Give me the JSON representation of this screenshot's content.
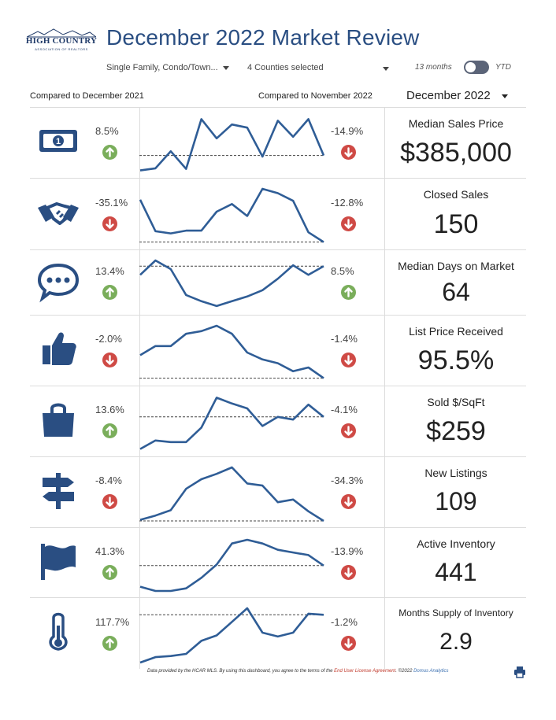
{
  "logo": {
    "name": "HIGH COUNTRY",
    "sub": "ASSOCIATION OF REALTORS"
  },
  "title": "December 2022 Market Review",
  "filters": {
    "property_type": "Single Family, Condo/Town...",
    "counties": "4 Counties selected",
    "toggle_left": "13 months",
    "toggle_right": "YTD"
  },
  "compare_left": "Compared to December 2021",
  "compare_right": "Compared to November 2022",
  "month_select": "December 2022",
  "colors": {
    "navy": "#2a4e82",
    "up": "#7aae5b",
    "down": "#cf4a45",
    "line": "#2f5d96"
  },
  "metrics": [
    {
      "label": "Median Sales Price",
      "value": "$385,000",
      "yoy": "8.5%",
      "yoy_dir": "up",
      "mom": "-14.9%",
      "mom_dir": "down",
      "icon": "money-icon",
      "spark": [
        0.02,
        0.06,
        0.38,
        0.05,
        0.98,
        0.62,
        0.88,
        0.82,
        0.28,
        0.95,
        0.65,
        0.98,
        0.3
      ],
      "spark_baseline": 0.3
    },
    {
      "label": "Closed Sales",
      "value": "150",
      "yoy": "-35.1%",
      "yoy_dir": "down",
      "mom": "-12.8%",
      "mom_dir": "down",
      "icon": "handshake-icon",
      "spark": [
        0.8,
        0.22,
        0.18,
        0.23,
        0.23,
        0.58,
        0.72,
        0.5,
        1.0,
        0.92,
        0.78,
        0.2,
        0.02
      ],
      "spark_baseline": 0.02
    },
    {
      "label": "Median Days on Market",
      "value": "64",
      "yoy": "13.4%",
      "yoy_dir": "up",
      "mom": "8.5%",
      "mom_dir": "up",
      "icon": "chat-icon",
      "spark": [
        0.7,
        1.0,
        0.82,
        0.28,
        0.15,
        0.05,
        0.15,
        0.25,
        0.38,
        0.62,
        0.9,
        0.7,
        0.88
      ],
      "spark_baseline": 0.88
    },
    {
      "label": "List Price Received",
      "value": "95.5%",
      "yoy": "-2.0%",
      "yoy_dir": "down",
      "mom": "-1.4%",
      "mom_dir": "down",
      "icon": "thumbs-up-icon",
      "spark": [
        0.45,
        0.62,
        0.62,
        0.85,
        0.9,
        1.0,
        0.85,
        0.5,
        0.37,
        0.3,
        0.15,
        0.22,
        0.02
      ],
      "spark_baseline": 0.02
    },
    {
      "label": "Sold $/SqFt",
      "value": "$259",
      "yoy": "13.6%",
      "yoy_dir": "up",
      "mom": "-4.1%",
      "mom_dir": "down",
      "icon": "shopping-bag-icon",
      "spark": [
        0.02,
        0.18,
        0.15,
        0.15,
        0.42,
        0.98,
        0.87,
        0.78,
        0.45,
        0.62,
        0.57,
        0.85,
        0.62
      ],
      "spark_baseline": 0.62
    },
    {
      "label": "New Listings",
      "value": "109",
      "yoy": "-8.4%",
      "yoy_dir": "down",
      "mom": "-34.3%",
      "mom_dir": "down",
      "icon": "signpost-icon",
      "spark": [
        0.02,
        0.1,
        0.2,
        0.6,
        0.78,
        0.88,
        1.0,
        0.7,
        0.66,
        0.35,
        0.4,
        0.18,
        0.0
      ],
      "spark_baseline": 0.0
    },
    {
      "label": "Active Inventory",
      "value": "441",
      "yoy": "41.3%",
      "yoy_dir": "up",
      "mom": "-13.9%",
      "mom_dir": "down",
      "icon": "flag-icon",
      "spark": [
        0.08,
        0.0,
        0.0,
        0.05,
        0.25,
        0.5,
        0.9,
        0.97,
        0.9,
        0.78,
        0.73,
        0.68,
        0.48
      ],
      "spark_baseline": 0.48
    },
    {
      "label": "Months Supply of Inventory",
      "value": "2.9",
      "yoy": "117.7%",
      "yoy_dir": "up",
      "mom": "-1.2%",
      "mom_dir": "down",
      "icon": "thermometer-icon",
      "spark": [
        0.0,
        0.1,
        0.12,
        0.16,
        0.4,
        0.5,
        0.75,
        1.0,
        0.55,
        0.48,
        0.55,
        0.9,
        0.88
      ],
      "spark_baseline": 0.88
    }
  ],
  "footer": {
    "text": "Data provided by the HCAR MLS.  By using this dashboard, you agree to the terms of the ",
    "link": "End User License Agreement",
    "after": ".  ©2022 ",
    "brand": "Domus Analytics"
  }
}
